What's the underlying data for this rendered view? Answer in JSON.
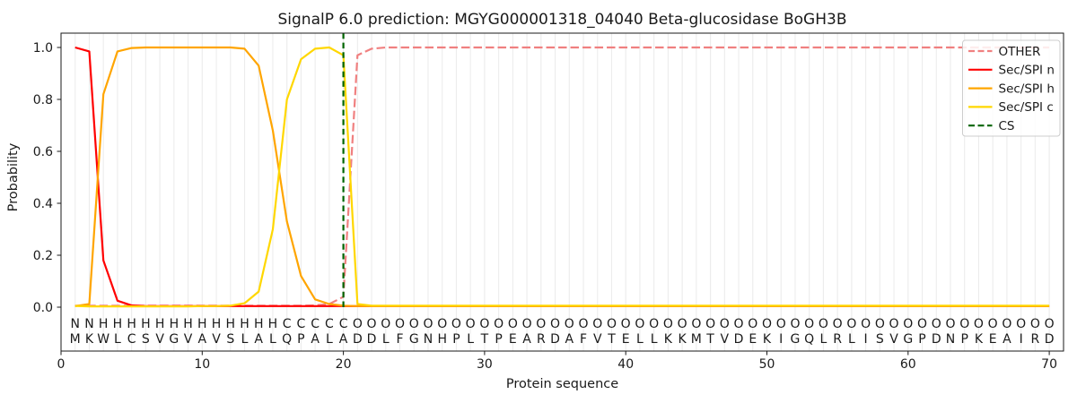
{
  "chart_data": {
    "type": "line",
    "title": "SignalP 6.0 prediction: MGYG000001318_04040 Beta-glucosidase BoGH3B",
    "xlabel": "Protein sequence",
    "ylabel": "Probability",
    "xlim": [
      0,
      71
    ],
    "ylim": [
      -0.17,
      1.055
    ],
    "xticks": [
      0,
      10,
      20,
      30,
      40,
      50,
      60,
      70
    ],
    "yticks": [
      "0.0",
      "0.2",
      "0.4",
      "0.6",
      "0.8",
      "1.0"
    ],
    "grid": "vertical line per residue, light grey",
    "legend_position": "upper right",
    "x_start": 1,
    "x_step": 1,
    "series": [
      {
        "name": "OTHER",
        "color": "#f08080",
        "style": "dashed",
        "values": [
          0.006,
          0.006,
          0.006,
          0.006,
          0.006,
          0.006,
          0.006,
          0.006,
          0.006,
          0.006,
          0.006,
          0.006,
          0.006,
          0.006,
          0.006,
          0.006,
          0.006,
          0.007,
          0.012,
          0.04,
          0.97,
          0.995,
          1.0,
          1.0,
          1.0,
          1.0,
          1.0,
          1.0,
          1.0,
          1.0,
          1.0,
          1.0,
          1.0,
          1.0,
          1.0,
          1.0,
          1.0,
          1.0,
          1.0,
          1.0,
          1.0,
          1.0,
          1.0,
          1.0,
          1.0,
          1.0,
          1.0,
          1.0,
          1.0,
          1.0,
          1.0,
          1.0,
          1.0,
          1.0,
          1.0,
          1.0,
          1.0,
          1.0,
          1.0,
          1.0,
          1.0,
          1.0,
          1.0,
          1.0,
          1.0,
          1.0,
          1.0,
          1.0,
          1.0,
          1.0
        ]
      },
      {
        "name": "Sec/SPI n",
        "color": "#ff0000",
        "style": "solid",
        "values": [
          1.0,
          0.985,
          0.18,
          0.025,
          0.007,
          0.004,
          0.004,
          0.004,
          0.004,
          0.004,
          0.004,
          0.004,
          0.004,
          0.004,
          0.004,
          0.004,
          0.004,
          0.004,
          0.004,
          0.004,
          0.004,
          0.004,
          0.004,
          0.004,
          0.004,
          0.004,
          0.004,
          0.004,
          0.004,
          0.004,
          0.004,
          0.004,
          0.004,
          0.004,
          0.004,
          0.004,
          0.004,
          0.004,
          0.004,
          0.004,
          0.004,
          0.004,
          0.004,
          0.004,
          0.004,
          0.004,
          0.004,
          0.004,
          0.004,
          0.004,
          0.004,
          0.004,
          0.004,
          0.004,
          0.004,
          0.004,
          0.004,
          0.004,
          0.004,
          0.004,
          0.004,
          0.004,
          0.004,
          0.004,
          0.004,
          0.004,
          0.004,
          0.004,
          0.004,
          0.004
        ]
      },
      {
        "name": "Sec/SPI h",
        "color": "#ffa500",
        "style": "solid",
        "values": [
          0.004,
          0.012,
          0.82,
          0.985,
          0.998,
          1.0,
          1.0,
          1.0,
          1.0,
          1.0,
          1.0,
          1.0,
          0.995,
          0.93,
          0.68,
          0.33,
          0.12,
          0.03,
          0.012,
          0.006,
          0.004,
          0.004,
          0.004,
          0.004,
          0.004,
          0.004,
          0.004,
          0.004,
          0.004,
          0.004,
          0.004,
          0.004,
          0.004,
          0.004,
          0.004,
          0.004,
          0.004,
          0.004,
          0.004,
          0.004,
          0.004,
          0.004,
          0.004,
          0.004,
          0.004,
          0.004,
          0.004,
          0.004,
          0.004,
          0.004,
          0.004,
          0.004,
          0.004,
          0.004,
          0.004,
          0.004,
          0.004,
          0.004,
          0.004,
          0.004,
          0.004,
          0.004,
          0.004,
          0.004,
          0.004,
          0.004,
          0.004,
          0.004,
          0.004,
          0.004
        ]
      },
      {
        "name": "Sec/SPI c",
        "color": "#ffd700",
        "style": "solid",
        "values": [
          0.005,
          0.003,
          0.003,
          0.003,
          0.003,
          0.003,
          0.003,
          0.003,
          0.003,
          0.004,
          0.004,
          0.006,
          0.015,
          0.06,
          0.3,
          0.8,
          0.955,
          0.995,
          1.0,
          0.97,
          0.012,
          0.006,
          0.006,
          0.006,
          0.006,
          0.006,
          0.006,
          0.006,
          0.006,
          0.006,
          0.006,
          0.006,
          0.006,
          0.006,
          0.006,
          0.006,
          0.006,
          0.006,
          0.006,
          0.006,
          0.006,
          0.006,
          0.006,
          0.006,
          0.006,
          0.006,
          0.006,
          0.006,
          0.006,
          0.006,
          0.006,
          0.006,
          0.006,
          0.006,
          0.006,
          0.006,
          0.006,
          0.006,
          0.006,
          0.006,
          0.006,
          0.006,
          0.006,
          0.006,
          0.006,
          0.006,
          0.006,
          0.006,
          0.006,
          0.006
        ]
      }
    ],
    "cs_marker": {
      "name": "CS",
      "position": 20,
      "color": "#006400",
      "style": "dashed"
    },
    "sequence": "MKWLCSVGVAVSLALQPALADDLFGNHPLTPEARDAFVTELLKKMTVDEKIGQLRLISVGPDNPKEAIRD",
    "region_labels": "NNHHHHHHHHHHHHHCCCCCOOOOOOOOOOOOOOOOOOOOOOOOOOOOOOOOOOOOOOOOOOOOOOOOOO",
    "region_colors": {
      "N": "#ff0000",
      "H": "#ffa500",
      "C": "#ffd700",
      "O": "#7f7f7f"
    },
    "sequence_color": "#1a1a1a"
  }
}
